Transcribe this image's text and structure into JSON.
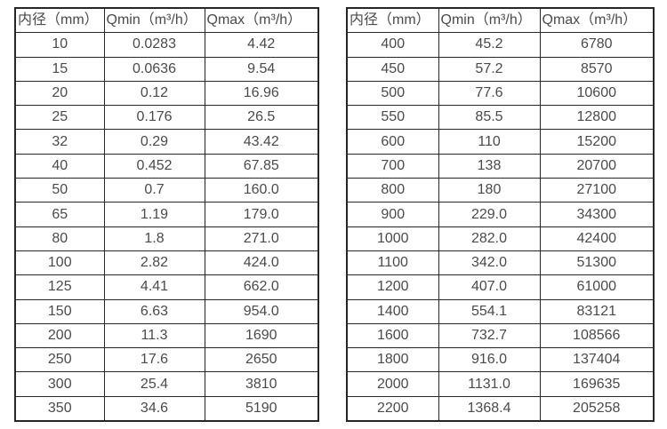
{
  "page": {
    "background_color": "#ffffff",
    "border_color": "#262626",
    "text_color": "#4a4a4a"
  },
  "tables": [
    {
      "name": "flow-table-small-diameter",
      "headers": [
        "内径（mm）",
        "Qmin（m³/h）",
        "Qmax（m³/h）"
      ],
      "rows": [
        [
          "10",
          "0.0283",
          "4.42"
        ],
        [
          "15",
          "0.0636",
          "9.54"
        ],
        [
          "20",
          "0.12",
          "16.96"
        ],
        [
          "25",
          "0.176",
          "26.5"
        ],
        [
          "32",
          "0.29",
          "43.42"
        ],
        [
          "40",
          "0.452",
          "67.85"
        ],
        [
          "50",
          "0.7",
          "160.0"
        ],
        [
          "65",
          "1.19",
          "179.0"
        ],
        [
          "80",
          "1.8",
          "271.0"
        ],
        [
          "100",
          "2.82",
          "424.0"
        ],
        [
          "125",
          "4.41",
          "662.0"
        ],
        [
          "150",
          "6.63",
          "954.0"
        ],
        [
          "200",
          "11.3",
          "1690"
        ],
        [
          "250",
          "17.6",
          "2650"
        ],
        [
          "300",
          "25.4",
          "3810"
        ],
        [
          "350",
          "34.6",
          "5190"
        ]
      ]
    },
    {
      "name": "flow-table-large-diameter",
      "headers": [
        "内径（mm）",
        "Qmin（m³/h）",
        "Qmax（m³/h）"
      ],
      "rows": [
        [
          "400",
          "45.2",
          "6780"
        ],
        [
          "450",
          "57.2",
          "8570"
        ],
        [
          "500",
          "77.6",
          "10600"
        ],
        [
          "550",
          "85.5",
          "12800"
        ],
        [
          "600",
          "110",
          "15200"
        ],
        [
          "700",
          "138",
          "20700"
        ],
        [
          "800",
          "180",
          "27100"
        ],
        [
          "900",
          "229.0",
          "34300"
        ],
        [
          "1000",
          "282.0",
          "42400"
        ],
        [
          "1100",
          "342.0",
          "51300"
        ],
        [
          "1200",
          "407.0",
          "61000"
        ],
        [
          "1400",
          "554.1",
          "83121"
        ],
        [
          "1600",
          "732.7",
          "108566"
        ],
        [
          "1800",
          "916.0",
          "137404"
        ],
        [
          "2000",
          "1131.0",
          "169635"
        ],
        [
          "2200",
          "1368.4",
          "205258"
        ]
      ]
    }
  ]
}
